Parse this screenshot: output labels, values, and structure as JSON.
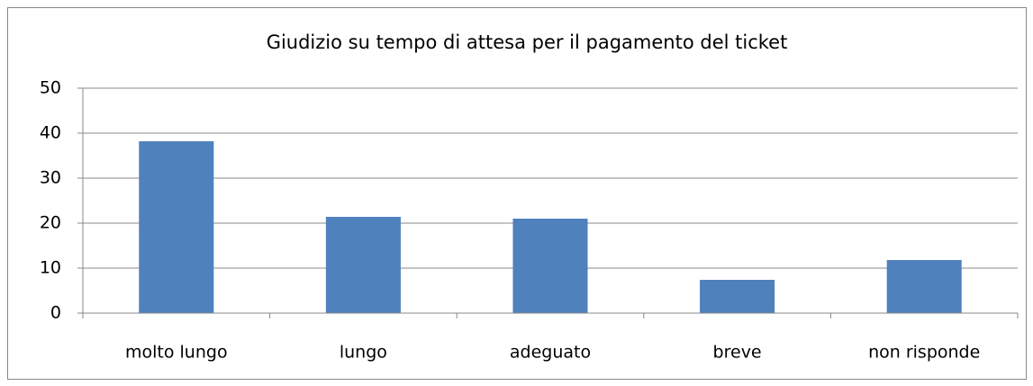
{
  "chart_data": {
    "type": "bar",
    "title": "Giudizio su tempo di attesa per il pagamento del ticket",
    "categories": [
      "molto lungo",
      "lungo",
      "adeguato",
      "breve",
      "non risponde"
    ],
    "values": [
      38.2,
      21.4,
      21,
      7.4,
      11.8
    ],
    "color": "#4f81bd",
    "ylim": [
      0,
      50
    ],
    "yticks": [
      0,
      10,
      20,
      30,
      40,
      50
    ],
    "grid": true
  }
}
